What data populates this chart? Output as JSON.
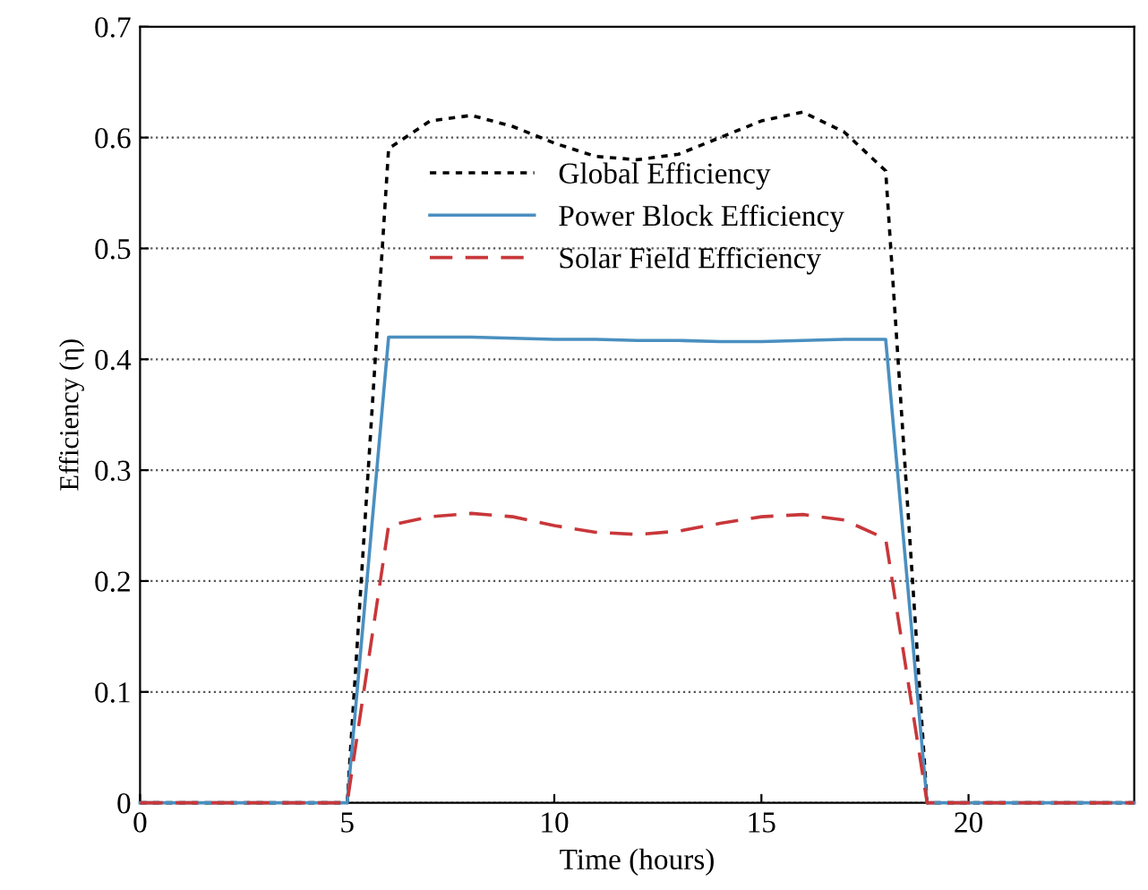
{
  "chart_data": {
    "type": "line",
    "xlabel": "Time (hours)",
    "ylabel": "Efficiency (η)",
    "xlim": [
      0,
      24
    ],
    "ylim": [
      0,
      0.7
    ],
    "xticks": [
      0,
      5,
      10,
      15,
      20
    ],
    "yticks": [
      0,
      0.1,
      0.2,
      0.3,
      0.4,
      0.5,
      0.6,
      0.7
    ],
    "grid": "y",
    "legend": "top",
    "x": [
      0,
      5,
      6,
      7,
      8,
      9,
      10,
      11,
      12,
      13,
      14,
      15,
      16,
      17,
      18,
      19,
      24
    ],
    "series": [
      {
        "name": "Global Efficiency",
        "color": "#000000",
        "line_style": "dotted",
        "values": [
          0,
          0,
          0.59,
          0.615,
          0.62,
          0.61,
          0.595,
          0.583,
          0.58,
          0.585,
          0.6,
          0.615,
          0.623,
          0.605,
          0.57,
          0,
          0
        ]
      },
      {
        "name": "Power Block Efficiency",
        "color": "#4a8fc0",
        "line_style": "solid",
        "values": [
          0,
          0,
          0.42,
          0.42,
          0.42,
          0.419,
          0.418,
          0.418,
          0.417,
          0.417,
          0.416,
          0.416,
          0.417,
          0.418,
          0.418,
          0,
          0
        ]
      },
      {
        "name": "Solar Field Efficiency",
        "color": "#c8373a",
        "line_style": "dashed",
        "values": [
          0,
          0,
          0.25,
          0.258,
          0.261,
          0.258,
          0.25,
          0.244,
          0.242,
          0.245,
          0.252,
          0.258,
          0.26,
          0.255,
          0.238,
          0,
          0
        ]
      }
    ]
  }
}
